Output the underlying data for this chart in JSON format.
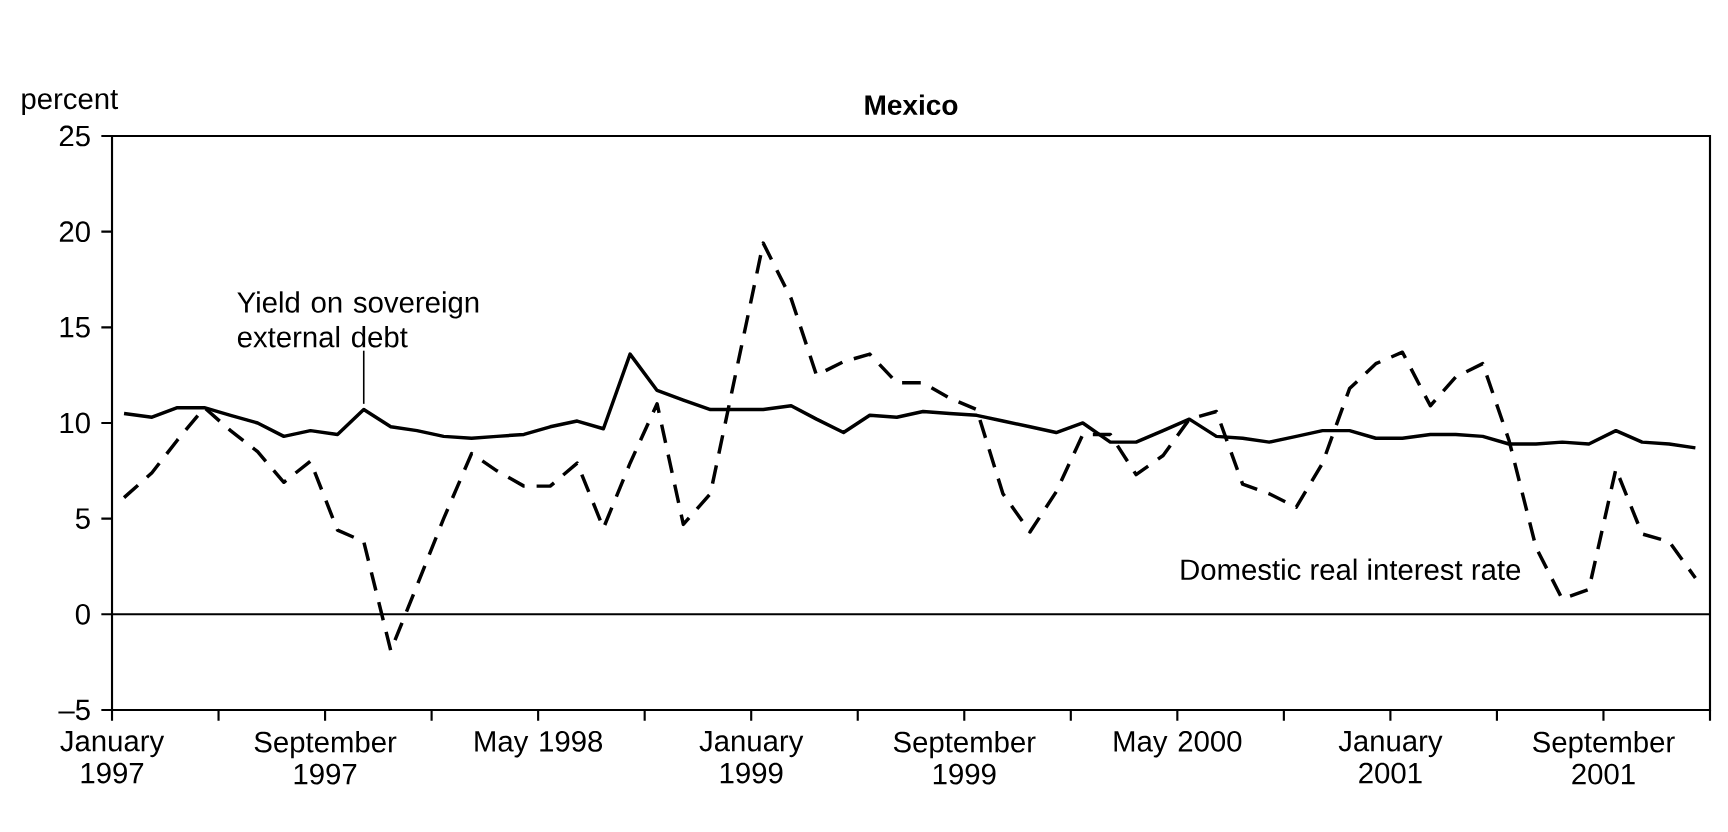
{
  "chart_data": {
    "type": "line",
    "title": "Mexico",
    "ylabel": "percent",
    "x": [
      "1997-01-15",
      "1997-02-15",
      "1997-03-15",
      "1997-04-15",
      "1997-05-15",
      "1997-06-15",
      "1997-07-15",
      "1997-08-15",
      "1997-09-15",
      "1997-10-15",
      "1997-11-15",
      "1997-12-15",
      "1998-01-15",
      "1998-02-15",
      "1998-03-15",
      "1998-04-15",
      "1998-05-15",
      "1998-06-15",
      "1998-07-15",
      "1998-08-15",
      "1998-09-15",
      "1998-10-15",
      "1998-11-15",
      "1998-12-15",
      "1999-01-15",
      "1999-02-15",
      "1999-03-15",
      "1999-04-15",
      "1999-05-15",
      "1999-06-15",
      "1999-07-15",
      "1999-08-15",
      "1999-09-15",
      "1999-10-15",
      "1999-11-15",
      "1999-12-15",
      "2000-01-15",
      "2000-02-15",
      "2000-03-15",
      "2000-04-15",
      "2000-05-15",
      "2000-06-15",
      "2000-07-15",
      "2000-08-15",
      "2000-09-15",
      "2000-10-15",
      "2000-11-15",
      "2000-12-15",
      "2001-01-15",
      "2001-02-15",
      "2001-03-15",
      "2001-04-15",
      "2001-05-15",
      "2001-06-15",
      "2001-07-15",
      "2001-08-15",
      "2001-09-15",
      "2001-10-15",
      "2001-11-15",
      "2001-12-15"
    ],
    "series": [
      {
        "name": "Yield on sovereign external debt",
        "color": "#000000",
        "line_style": "solid",
        "values": [
          10.5,
          10.3,
          10.8,
          10.8,
          10.4,
          10.0,
          9.3,
          9.6,
          9.4,
          10.7,
          9.8,
          9.6,
          9.3,
          9.2,
          9.3,
          9.4,
          9.8,
          10.1,
          9.7,
          13.6,
          11.7,
          11.2,
          10.7,
          10.7,
          10.7,
          10.9,
          10.2,
          9.5,
          10.4,
          10.3,
          10.6,
          10.5,
          10.4,
          10.1,
          9.8,
          9.5,
          10.0,
          9.0,
          9.0,
          9.6,
          10.2,
          9.3,
          9.2,
          9.0,
          9.3,
          9.6,
          9.6,
          9.2,
          9.2,
          9.4,
          9.4,
          9.3,
          8.9,
          8.9,
          9.0,
          8.9,
          9.6,
          9.0,
          8.9,
          8.7
        ]
      },
      {
        "name": "Domestic real interest rate",
        "color": "#000000",
        "line_style": "dashed",
        "values": [
          6.1,
          7.4,
          9.1,
          10.8,
          9.6,
          8.5,
          6.9,
          8.0,
          4.4,
          3.8,
          -1.9,
          1.5,
          5.0,
          8.4,
          7.5,
          6.7,
          6.7,
          7.9,
          4.5,
          7.9,
          11.0,
          4.7,
          6.3,
          12.8,
          19.4,
          16.5,
          12.5,
          13.2,
          13.6,
          12.1,
          12.1,
          11.3,
          10.7,
          6.3,
          4.3,
          6.4,
          9.4,
          9.4,
          7.3,
          8.3,
          10.2,
          10.6,
          6.8,
          6.3,
          5.6,
          7.9,
          11.8,
          13.1,
          13.7,
          10.9,
          12.4,
          13.1,
          9.1,
          3.5,
          0.8,
          1.3,
          7.6,
          4.2,
          3.8,
          1.9
        ]
      }
    ],
    "xlim": [
      "1997-01-01",
      "2002-01-01"
    ],
    "xticks": [
      {
        "value": "1997-01-01",
        "label": "January 1997"
      },
      {
        "value": "1997-05-01",
        "label": null
      },
      {
        "value": "1997-09-01",
        "label": "September 1997"
      },
      {
        "value": "1998-01-01",
        "label": null
      },
      {
        "value": "1998-05-01",
        "label": "May 1998"
      },
      {
        "value": "1998-09-01",
        "label": null
      },
      {
        "value": "1999-01-01",
        "label": "January 1999"
      },
      {
        "value": "1999-05-01",
        "label": null
      },
      {
        "value": "1999-09-01",
        "label": "September 1999"
      },
      {
        "value": "2000-01-01",
        "label": null
      },
      {
        "value": "2000-05-01",
        "label": "May 2000"
      },
      {
        "value": "2000-09-01",
        "label": null
      },
      {
        "value": "2001-01-01",
        "label": "January 2001"
      },
      {
        "value": "2001-05-01",
        "label": null
      },
      {
        "value": "2001-09-01",
        "label": "September 2001"
      },
      {
        "value": "2002-01-01",
        "label": null
      }
    ],
    "ylim": [
      -5,
      25
    ],
    "yticks": [
      {
        "value": -5,
        "label": "–5"
      },
      0,
      5,
      10,
      15,
      20,
      25
    ],
    "ref_lines": [
      {
        "axis": "y",
        "value": 0
      }
    ],
    "grid": false,
    "legend": false,
    "marker": "none"
  }
}
